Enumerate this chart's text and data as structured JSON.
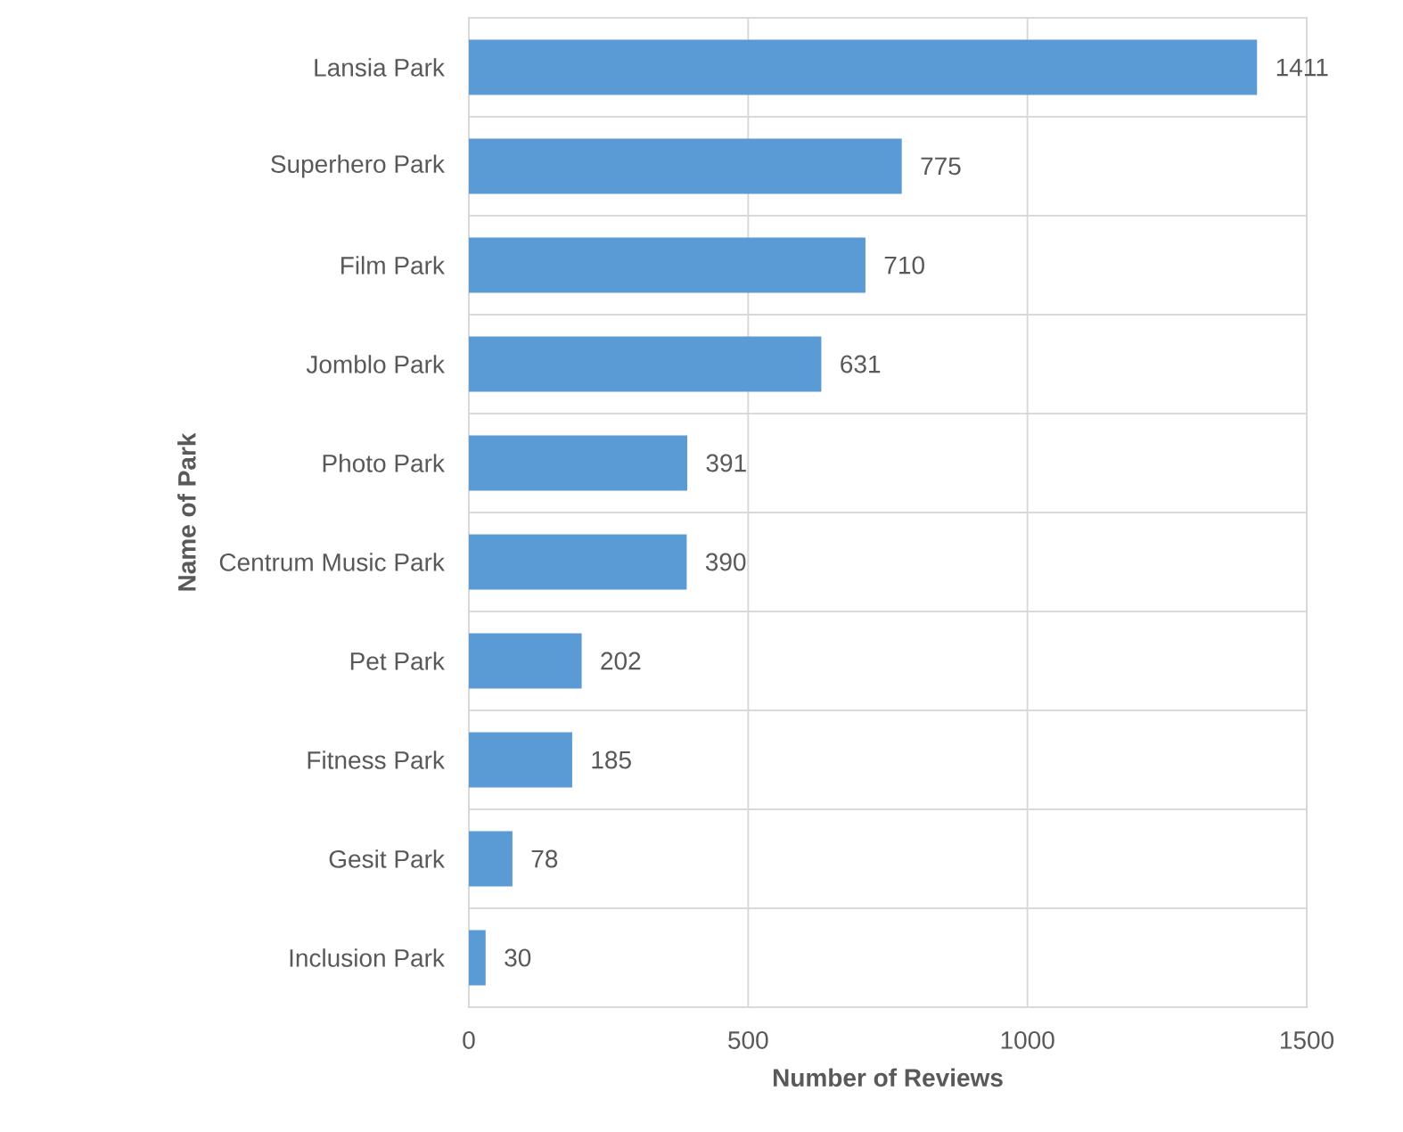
{
  "chart_data": {
    "type": "bar",
    "orientation": "horizontal",
    "xlabel": "Number of Reviews",
    "ylabel": "Name of Park",
    "categories": [
      "Lansia Park",
      "Superhero Park",
      "Film Park",
      "Jomblo Park",
      "Photo Park",
      "Centrum Music Park",
      "Pet Park",
      "Fitness Park",
      "Gesit Park",
      "Inclusion Park"
    ],
    "values": [
      1411,
      775,
      710,
      631,
      391,
      390,
      202,
      185,
      78,
      30
    ],
    "color": "#5b9bd5",
    "xlim": [
      0,
      1500
    ],
    "xticks": [
      0,
      500,
      1000,
      1500
    ],
    "grid": true,
    "data_labels": true
  }
}
